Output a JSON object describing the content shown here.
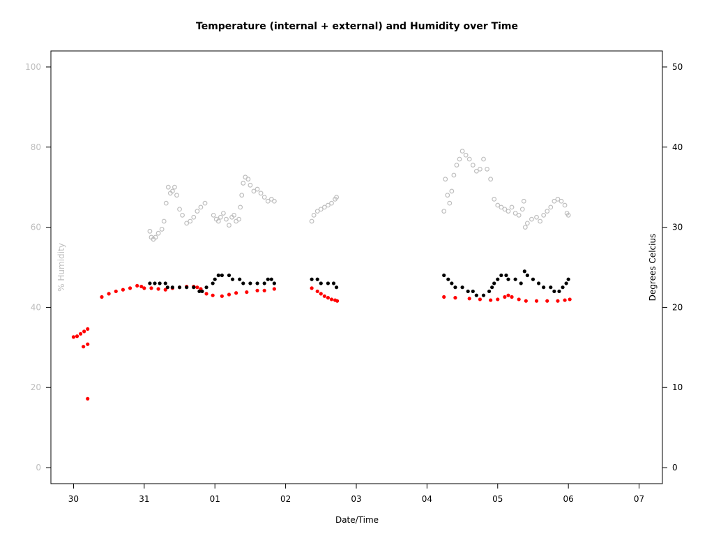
{
  "chart_data": {
    "type": "scatter",
    "title": "Temperature (internal + external) and Humidity over Time",
    "xlabel": "Date/Time",
    "ylabel_left": "% Humidity",
    "ylabel_right": "Degrees Celcius",
    "x_ticks": [
      "30",
      "31",
      "01",
      "02",
      "03",
      "04",
      "05",
      "06",
      "07"
    ],
    "x_tick_values": [
      0,
      1,
      2,
      3,
      4,
      5,
      6,
      7,
      8
    ],
    "xlim": [
      -0.32,
      8.33
    ],
    "y_left_ticks": [
      0,
      20,
      40,
      60,
      80,
      100
    ],
    "ylim_left": [
      -4,
      104
    ],
    "y_right_ticks": [
      0,
      10,
      20,
      30,
      40,
      50
    ],
    "ylim_right": [
      -2,
      52
    ],
    "colors": {
      "humidity": "#bebebe",
      "left_axis": "#bebebe",
      "internal": "#ff0000",
      "external": "#000000"
    },
    "grid": false,
    "series": [
      {
        "axis": "left",
        "marker": "open-circle",
        "color": "#bebebe",
        "points": [
          [
            1.08,
            59
          ],
          [
            1.1,
            57.5
          ],
          [
            1.13,
            57
          ],
          [
            1.16,
            57.5
          ],
          [
            1.2,
            58.5
          ],
          [
            1.25,
            59.5
          ],
          [
            1.28,
            61.5
          ],
          [
            1.31,
            66
          ],
          [
            1.34,
            70
          ],
          [
            1.37,
            68.5
          ],
          [
            1.4,
            69
          ],
          [
            1.43,
            70
          ],
          [
            1.46,
            68
          ],
          [
            1.5,
            64.5
          ],
          [
            1.54,
            63
          ],
          [
            1.6,
            61
          ],
          [
            1.65,
            61.5
          ],
          [
            1.7,
            62.5
          ],
          [
            1.75,
            64
          ],
          [
            1.8,
            65
          ],
          [
            1.86,
            66
          ],
          [
            1.98,
            63
          ],
          [
            2.02,
            62
          ],
          [
            2.05,
            61.5
          ],
          [
            2.08,
            62.5
          ],
          [
            2.12,
            63.5
          ],
          [
            2.16,
            62
          ],
          [
            2.2,
            60.5
          ],
          [
            2.24,
            62.5
          ],
          [
            2.27,
            63
          ],
          [
            2.3,
            61.5
          ],
          [
            2.34,
            62
          ],
          [
            2.36,
            65
          ],
          [
            2.38,
            68
          ],
          [
            2.4,
            71
          ],
          [
            2.43,
            72.5
          ],
          [
            2.47,
            72
          ],
          [
            2.5,
            70.5
          ],
          [
            2.55,
            69
          ],
          [
            2.6,
            69.5
          ],
          [
            2.65,
            68.5
          ],
          [
            2.7,
            67.5
          ],
          [
            2.75,
            66.5
          ],
          [
            2.8,
            67
          ],
          [
            2.84,
            66.5
          ],
          [
            3.37,
            61.5
          ],
          [
            3.4,
            63
          ],
          [
            3.45,
            64
          ],
          [
            3.5,
            64.5
          ],
          [
            3.55,
            65
          ],
          [
            3.6,
            65.5
          ],
          [
            3.65,
            66
          ],
          [
            3.7,
            67
          ],
          [
            3.72,
            67.5
          ],
          [
            5.24,
            64
          ],
          [
            5.26,
            72
          ],
          [
            5.29,
            68
          ],
          [
            5.32,
            66
          ],
          [
            5.35,
            69
          ],
          [
            5.38,
            73
          ],
          [
            5.42,
            75.5
          ],
          [
            5.46,
            77
          ],
          [
            5.5,
            79
          ],
          [
            5.55,
            78
          ],
          [
            5.6,
            77
          ],
          [
            5.65,
            75.5
          ],
          [
            5.7,
            74
          ],
          [
            5.75,
            74.5
          ],
          [
            5.8,
            77
          ],
          [
            5.85,
            74.5
          ],
          [
            5.9,
            72
          ],
          [
            5.95,
            67
          ],
          [
            6.0,
            65.5
          ],
          [
            6.05,
            65
          ],
          [
            6.1,
            64.5
          ],
          [
            6.15,
            64
          ],
          [
            6.2,
            65
          ],
          [
            6.25,
            63.5
          ],
          [
            6.3,
            63
          ],
          [
            6.35,
            64.5
          ],
          [
            6.37,
            66.5
          ],
          [
            6.39,
            60
          ],
          [
            6.42,
            61
          ],
          [
            6.48,
            62
          ],
          [
            6.55,
            62.5
          ],
          [
            6.6,
            61.5
          ],
          [
            6.65,
            63
          ],
          [
            6.7,
            64
          ],
          [
            6.75,
            65
          ],
          [
            6.8,
            66.5
          ],
          [
            6.85,
            67
          ],
          [
            6.9,
            66.5
          ],
          [
            6.95,
            65.5
          ],
          [
            6.98,
            63.5
          ],
          [
            7.0,
            63
          ]
        ]
      },
      {
        "axis": "right",
        "marker": "filled-circle",
        "color": "#ff0000",
        "points": [
          [
            0.0,
            16.3
          ],
          [
            0.05,
            16.4
          ],
          [
            0.1,
            16.7
          ],
          [
            0.15,
            17
          ],
          [
            0.2,
            17.3
          ],
          [
            0.14,
            15.1
          ],
          [
            0.2,
            15.4
          ],
          [
            0.2,
            8.6
          ],
          [
            0.4,
            21.3
          ],
          [
            0.5,
            21.7
          ],
          [
            0.6,
            22
          ],
          [
            0.7,
            22.2
          ],
          [
            0.8,
            22.4
          ],
          [
            0.9,
            22.7
          ],
          [
            0.96,
            22.6
          ],
          [
            1.0,
            22.4
          ],
          [
            1.1,
            22.4
          ],
          [
            1.2,
            22.3
          ],
          [
            1.3,
            22.2
          ],
          [
            1.4,
            22.4
          ],
          [
            1.5,
            22.5
          ],
          [
            1.6,
            22.6
          ],
          [
            1.7,
            22.6
          ],
          [
            1.75,
            22.5
          ],
          [
            1.8,
            22.3
          ],
          [
            1.88,
            21.7
          ],
          [
            1.97,
            21.5
          ],
          [
            2.1,
            21.4
          ],
          [
            2.2,
            21.6
          ],
          [
            2.3,
            21.8
          ],
          [
            2.45,
            21.9
          ],
          [
            2.6,
            22.1
          ],
          [
            2.7,
            22.1
          ],
          [
            2.84,
            22.3
          ],
          [
            3.37,
            22.4
          ],
          [
            3.45,
            22
          ],
          [
            3.5,
            21.7
          ],
          [
            3.55,
            21.4
          ],
          [
            3.6,
            21.2
          ],
          [
            3.65,
            21
          ],
          [
            3.7,
            20.9
          ],
          [
            3.73,
            20.8
          ],
          [
            5.24,
            21.3
          ],
          [
            5.4,
            21.2
          ],
          [
            5.6,
            21.1
          ],
          [
            5.75,
            21
          ],
          [
            5.9,
            20.9
          ],
          [
            6.0,
            21
          ],
          [
            6.1,
            21.3
          ],
          [
            6.15,
            21.5
          ],
          [
            6.2,
            21.3
          ],
          [
            6.3,
            21
          ],
          [
            6.4,
            20.8
          ],
          [
            6.55,
            20.8
          ],
          [
            6.7,
            20.8
          ],
          [
            6.85,
            20.8
          ],
          [
            6.95,
            20.9
          ],
          [
            7.02,
            21
          ]
        ]
      },
      {
        "axis": "right",
        "marker": "filled-circle",
        "color": "#000000",
        "points": [
          [
            1.08,
            23
          ],
          [
            1.15,
            23
          ],
          [
            1.22,
            23
          ],
          [
            1.3,
            23
          ],
          [
            1.33,
            22.5
          ],
          [
            1.4,
            22.5
          ],
          [
            1.5,
            22.5
          ],
          [
            1.6,
            22.5
          ],
          [
            1.7,
            22.5
          ],
          [
            1.78,
            22
          ],
          [
            1.82,
            22
          ],
          [
            1.88,
            22.5
          ],
          [
            1.97,
            23
          ],
          [
            2.0,
            23.5
          ],
          [
            2.05,
            24
          ],
          [
            2.1,
            24
          ],
          [
            2.2,
            24
          ],
          [
            2.25,
            23.5
          ],
          [
            2.35,
            23.5
          ],
          [
            2.4,
            23
          ],
          [
            2.5,
            23
          ],
          [
            2.6,
            23
          ],
          [
            2.7,
            23
          ],
          [
            2.75,
            23.5
          ],
          [
            2.8,
            23.5
          ],
          [
            2.84,
            23
          ],
          [
            3.37,
            23.5
          ],
          [
            3.45,
            23.5
          ],
          [
            3.5,
            23
          ],
          [
            3.6,
            23
          ],
          [
            3.68,
            23
          ],
          [
            3.72,
            22.5
          ],
          [
            5.24,
            24
          ],
          [
            5.3,
            23.5
          ],
          [
            5.35,
            23
          ],
          [
            5.4,
            22.5
          ],
          [
            5.5,
            22.5
          ],
          [
            5.58,
            22
          ],
          [
            5.65,
            22
          ],
          [
            5.7,
            21.5
          ],
          [
            5.8,
            21.5
          ],
          [
            5.88,
            22
          ],
          [
            5.92,
            22.5
          ],
          [
            5.95,
            23
          ],
          [
            6.0,
            23.5
          ],
          [
            6.05,
            24
          ],
          [
            6.12,
            24
          ],
          [
            6.15,
            23.5
          ],
          [
            6.25,
            23.5
          ],
          [
            6.33,
            23
          ],
          [
            6.38,
            24.5
          ],
          [
            6.42,
            24
          ],
          [
            6.5,
            23.5
          ],
          [
            6.58,
            23
          ],
          [
            6.65,
            22.5
          ],
          [
            6.75,
            22.5
          ],
          [
            6.8,
            22
          ],
          [
            6.87,
            22
          ],
          [
            6.92,
            22.5
          ],
          [
            6.97,
            23
          ],
          [
            7.0,
            23.5
          ]
        ]
      }
    ]
  }
}
